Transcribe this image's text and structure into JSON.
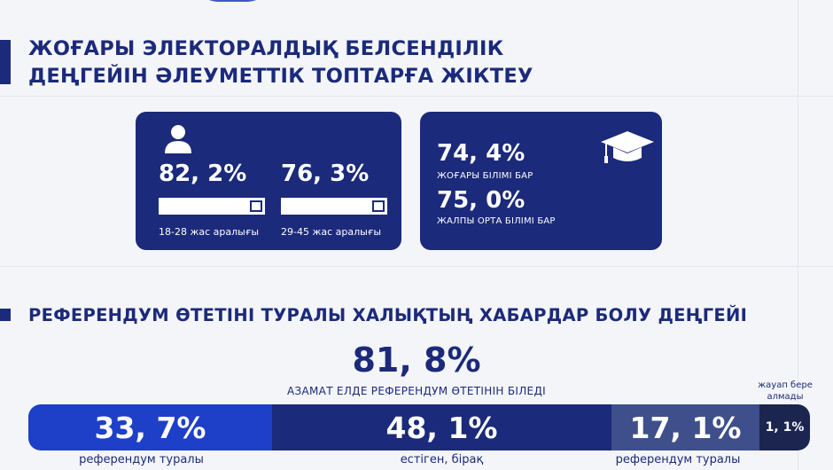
{
  "section1": {
    "title_line1": "ЖОҒАРЫ ЭЛЕКТОРАЛДЫҚ БЕЛСЕНДІЛІК",
    "title_line2": "ДЕҢГЕЙІН ӘЛЕУМЕТТІК ТОПТАРҒА ЖІКТЕУ"
  },
  "age_card": {
    "icon": "person-icon",
    "group1": {
      "value": "82, 2%",
      "label": "18-28 жас аралығы",
      "level": 82.2
    },
    "group2": {
      "value": "76, 3%",
      "label": "29-45 жас аралығы",
      "level": 76.3
    }
  },
  "edu_card": {
    "icon": "graduation-cap-icon",
    "higher": {
      "value": "74, 4%",
      "label": "ЖОҒАРЫ БІЛІМІ БАР"
    },
    "secondary": {
      "value": "75, 0%",
      "label": "ЖАЛПЫ ОРТА БІЛІМІ БАР"
    }
  },
  "section2": {
    "title": "РЕФЕРЕНДУМ ӨТЕТІНІ ТУРАЛЫ ХАЛЫҚТЫҢ ХАБАРДАР БОЛУ ДЕҢГЕЙІ",
    "total_value": "81, 8%",
    "total_label": "АЗАМАТ ЕЛДЕ РЕФЕРЕНДУМ ӨТЕТІНІН БІЛЕДІ",
    "no_answer_label": "жауап бере алмады"
  },
  "segments": [
    {
      "value": "33, 7%",
      "caption": "референдум туралы",
      "color": "#1e3fc8"
    },
    {
      "value": "48, 1%",
      "caption": "естіген, бірақ",
      "color": "#1b2a7a"
    },
    {
      "value": "17, 1%",
      "caption": "референдум туралы",
      "color": "#3e4f8c"
    },
    {
      "value": "1, 1%",
      "caption": "",
      "color": "#1c2550"
    }
  ],
  "colors": {
    "navy": "#1b2a7a",
    "blue": "#1e3fc8",
    "slate": "#3e4f8c",
    "dark": "#1c2550"
  }
}
